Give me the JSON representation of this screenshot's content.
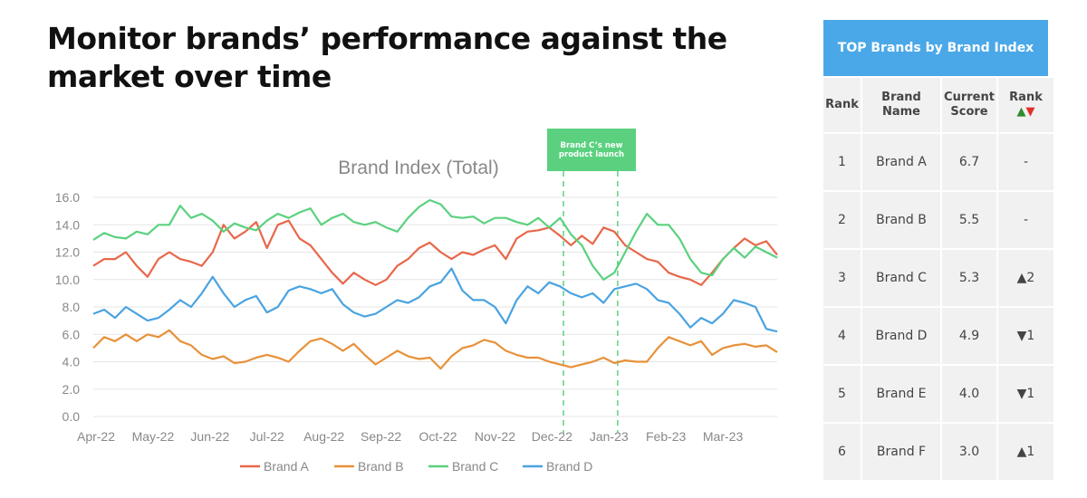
{
  "page_title": "Monitor brands’ performance against the market over time",
  "table": {
    "title": "TOP Brands by Brand Index",
    "headers": {
      "rank": "Rank",
      "brand_name": "Brand Name",
      "current_score": "Current Score",
      "rank_change": "Rank",
      "rank_change_icons": "▲▼"
    },
    "rows": [
      {
        "rank": "1",
        "brand": "Brand A",
        "score": "6.7",
        "change": "-",
        "dir": "none"
      },
      {
        "rank": "2",
        "brand": "Brand B",
        "score": "5.5",
        "change": "-",
        "dir": "none"
      },
      {
        "rank": "3",
        "brand": "Brand C",
        "score": "5.3",
        "change": "▲2",
        "dir": "up"
      },
      {
        "rank": "4",
        "brand": "Brand D",
        "score": "4.9",
        "change": "▼1",
        "dir": "down"
      },
      {
        "rank": "5",
        "brand": "Brand E",
        "score": "4.0",
        "change": "▼1",
        "dir": "down"
      },
      {
        "rank": "6",
        "brand": "Brand F",
        "score": "3.0",
        "change": "▲1",
        "dir": "up"
      }
    ]
  },
  "chart_data": {
    "type": "line",
    "title": "Brand Index (Total)",
    "xlabel": "",
    "ylabel": "",
    "ylim": [
      0,
      16
    ],
    "yticks": [
      "0.0",
      "2.0",
      "4.0",
      "6.0",
      "8.0",
      "10.0",
      "12.0",
      "14.0",
      "16.0"
    ],
    "xticks": [
      "Apr-22",
      "May-22",
      "Jun-22",
      "Jul-22",
      "Aug-22",
      "Sep-22",
      "Oct-22",
      "Nov-22",
      "Dec-22",
      "Jan-23",
      "Feb-23",
      "Mar-23"
    ],
    "xrange_months": [
      0,
      12
    ],
    "grid": true,
    "legend": "bottom",
    "annotation": {
      "label": "Brand C’s new product launch",
      "x_months": [
        8.25,
        9.2
      ],
      "color": "#5bd17f"
    },
    "series": [
      {
        "name": "Brand A",
        "color": "#e8674a",
        "values": [
          11,
          11.5,
          11.5,
          12,
          11,
          10.2,
          11.5,
          12,
          11.5,
          11.3,
          11,
          12,
          14,
          13,
          13.5,
          14.2,
          12.3,
          14,
          14.3,
          13,
          12.5,
          11.5,
          10.5,
          9.7,
          10.5,
          10,
          9.6,
          10,
          11,
          11.5,
          12.3,
          12.7,
          12,
          11.5,
          12,
          11.8,
          12.2,
          12.5,
          11.5,
          13,
          13.5,
          13.6,
          13.8,
          13.2,
          12.5,
          13.2,
          12.6,
          13.8,
          13.5,
          12.5,
          12,
          11.5,
          11.3,
          10.5,
          10.2,
          10,
          9.6,
          10.5,
          11.5,
          12.3,
          13,
          12.5,
          12.8,
          11.8
        ]
      },
      {
        "name": "Brand B",
        "color": "#e8913a",
        "values": [
          5,
          5.8,
          5.5,
          6,
          5.5,
          6,
          5.8,
          6.3,
          5.5,
          5.2,
          4.5,
          4.2,
          4.4,
          3.9,
          4,
          4.3,
          4.5,
          4.3,
          4,
          4.8,
          5.5,
          5.7,
          5.3,
          4.8,
          5.3,
          4.5,
          3.8,
          4.3,
          4.8,
          4.4,
          4.2,
          4.3,
          3.5,
          4.4,
          5,
          5.2,
          5.6,
          5.4,
          4.8,
          4.5,
          4.3,
          4.3,
          4,
          3.8,
          3.6,
          3.8,
          4,
          4.3,
          3.9,
          4.1,
          4,
          4,
          5,
          5.8,
          5.5,
          5.2,
          5.5,
          4.5,
          5,
          5.2,
          5.3,
          5.1,
          5.2,
          4.7
        ]
      },
      {
        "name": "Brand C",
        "color": "#5bd17f",
        "values": [
          12.9,
          13.4,
          13.1,
          13,
          13.5,
          13.3,
          14,
          14,
          15.4,
          14.5,
          14.8,
          14.3,
          13.5,
          14.1,
          13.8,
          13.6,
          14.3,
          14.8,
          14.5,
          14.9,
          15.2,
          14,
          14.5,
          14.8,
          14.2,
          14,
          14.2,
          13.8,
          13.5,
          14.5,
          15.3,
          15.8,
          15.5,
          14.6,
          14.5,
          14.6,
          14.1,
          14.5,
          14.5,
          14.2,
          14,
          14.5,
          13.8,
          14.5,
          13.3,
          12.5,
          11,
          10,
          10.5,
          12,
          13.5,
          14.8,
          14,
          14,
          13,
          11.5,
          10.5,
          10.3,
          11.5,
          12.3,
          11.6,
          12.4,
          12,
          11.6
        ]
      },
      {
        "name": "Brand D",
        "color": "#4aa3e0",
        "values": [
          7.5,
          7.8,
          7.2,
          8,
          7.5,
          7,
          7.2,
          7.8,
          8.5,
          8,
          9,
          10.2,
          9,
          8,
          8.5,
          8.8,
          7.6,
          8,
          9.2,
          9.5,
          9.3,
          9,
          9.3,
          8.2,
          7.6,
          7.3,
          7.5,
          8,
          8.5,
          8.3,
          8.7,
          9.5,
          9.8,
          10.8,
          9.2,
          8.5,
          8.5,
          8,
          6.8,
          8.5,
          9.5,
          9,
          9.8,
          9.5,
          9,
          8.7,
          9,
          8.3,
          9.3,
          9.5,
          9.7,
          9.3,
          8.5,
          8.3,
          7.5,
          6.5,
          7.2,
          6.8,
          7.5,
          8.5,
          8.3,
          8,
          6.4,
          6.2
        ]
      }
    ]
  }
}
